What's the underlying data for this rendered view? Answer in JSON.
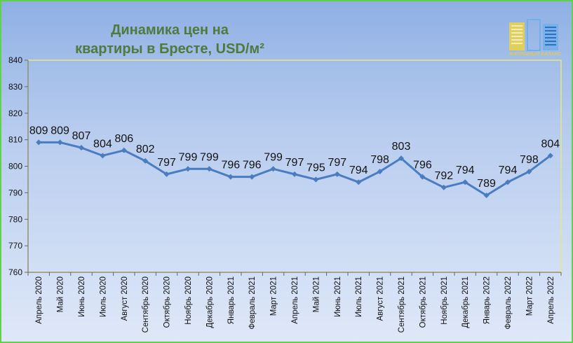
{
  "chart_data": {
    "type": "line",
    "title": "Динамика цен на квартиры в Бресте, USD/м²",
    "title_lines": [
      "Динамика цен на",
      "квартиры в Бресте, USD/м²"
    ],
    "categories": [
      "Апрель 2020",
      "Май 2020",
      "Июнь 2020",
      "Июль 2020",
      "Август 2020",
      "Сентябрь 2020",
      "Октябрь 2020",
      "Ноябрь 2020",
      "Декабрь 2020",
      "Январь 2021",
      "Февраль 2021",
      "Март 2021",
      "Апрель 2021",
      "Май 2021",
      "Июнь 2021",
      "Июль 2021",
      "Август 2021",
      "Сентябрь 2021",
      "Октябрь 2021",
      "Ноябрь 2021",
      "Декабрь 2021",
      "Январь 2022",
      "Февраль 2022",
      "Март 2022",
      "Апрель 2022"
    ],
    "values": [
      809,
      809,
      807,
      804,
      806,
      802,
      797,
      799,
      799,
      796,
      796,
      799,
      797,
      795,
      797,
      794,
      798,
      803,
      796,
      792,
      794,
      789,
      794,
      798,
      804
    ],
    "ylim": [
      760,
      840
    ],
    "yticks": [
      760,
      770,
      780,
      790,
      800,
      810,
      820,
      830,
      840
    ],
    "grid": false,
    "legend": "none",
    "line_color": "#4a7cc0",
    "xlabel": "",
    "ylabel": ""
  },
  "logo": {
    "text": "ЖИЛИЩНЫЙ БАЛАНС",
    "icon": "building-logo-icon",
    "colors": [
      "#e8d24a",
      "#6fb0e8",
      "#2e6fc4"
    ]
  }
}
